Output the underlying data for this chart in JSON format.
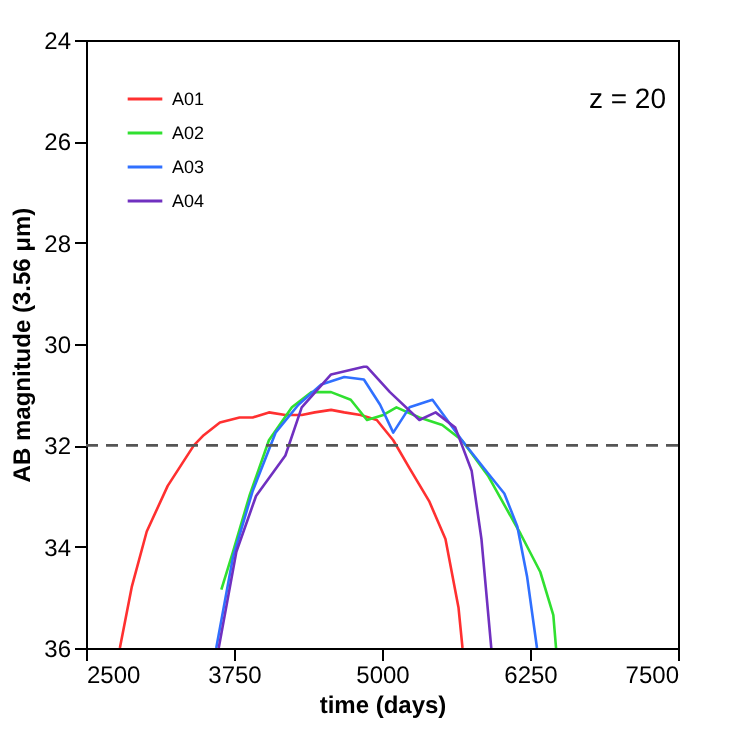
{
  "chart_data": {
    "type": "line",
    "xlabel": "time (days)",
    "ylabel": "AB magnitude (3.56 μm)",
    "annotations": [
      "z = 20"
    ],
    "xlim": [
      2500,
      7500
    ],
    "xticks": [
      2500,
      3750,
      5000,
      6250,
      7500
    ],
    "ylim": [
      36,
      24
    ],
    "yticks": [
      24,
      26,
      28,
      30,
      32,
      34,
      36
    ],
    "grid": false,
    "legend": "top left",
    "line_style": "solid",
    "marker": "none",
    "ref_lines": [
      {
        "axis": "y",
        "value": 32,
        "color": "#555555",
        "line_style": "dashed"
      }
    ],
    "series": [
      {
        "name": "A01",
        "color": "#ff3030",
        "x": [
          2786,
          2886,
          3013,
          3190,
          3411,
          3494,
          3631,
          3797,
          3908,
          4045,
          4184,
          4322,
          4432,
          4570,
          4681,
          4819,
          4956,
          5095,
          5232,
          5398,
          5536,
          5646,
          5680
        ],
        "values": [
          36,
          34.8,
          33.7,
          32.8,
          32.0,
          31.8,
          31.55,
          31.45,
          31.45,
          31.35,
          31.4,
          31.4,
          31.35,
          31.3,
          31.35,
          31.4,
          31.5,
          31.9,
          32.45,
          33.1,
          33.85,
          35.2,
          36
        ]
      },
      {
        "name": "A02",
        "color": "#30e030",
        "x": [
          3643,
          3742,
          3880,
          4045,
          4239,
          4405,
          4570,
          4736,
          4873,
          5012,
          5122,
          5316,
          5509,
          5675,
          5895,
          6171,
          6337,
          6447,
          6470
        ],
        "values": [
          34.85,
          34.1,
          33.0,
          31.9,
          31.25,
          30.95,
          30.95,
          31.1,
          31.5,
          31.4,
          31.25,
          31.45,
          31.6,
          31.9,
          32.6,
          33.75,
          34.5,
          35.35,
          36
        ]
      },
      {
        "name": "A03",
        "color": "#3070ff",
        "x": [
          3600,
          3742,
          3908,
          4101,
          4294,
          4487,
          4681,
          4847,
          4984,
          5095,
          5232,
          5426,
          5675,
          5895,
          6033,
          6143,
          6226,
          6309
        ],
        "values": [
          36,
          34.2,
          32.9,
          31.75,
          31.2,
          30.8,
          30.65,
          30.7,
          31.2,
          31.75,
          31.25,
          31.1,
          31.9,
          32.55,
          32.95,
          33.6,
          34.6,
          36
        ]
      },
      {
        "name": "A04",
        "color": "#7030c0",
        "x": [
          3621,
          3770,
          3936,
          4184,
          4322,
          4570,
          4847,
          4873,
          5067,
          5316,
          5453,
          5619,
          5757,
          5840,
          5923
        ],
        "values": [
          36,
          34.1,
          33.0,
          32.2,
          31.25,
          30.6,
          30.45,
          30.45,
          30.95,
          31.5,
          31.35,
          31.65,
          32.5,
          33.85,
          36
        ]
      }
    ]
  }
}
